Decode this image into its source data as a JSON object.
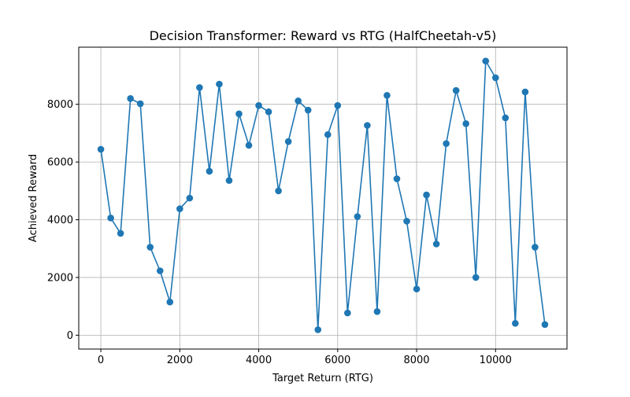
{
  "chart_data": {
    "type": "line",
    "title": "Decision Transformer: Reward vs RTG (HalfCheetah-v5)",
    "xlabel": "Target Return (RTG)",
    "ylabel": "Achieved Reward",
    "xlim": [
      -560,
      11810
    ],
    "ylim": [
      -480,
      9980
    ],
    "xticks": [
      0,
      2000,
      4000,
      6000,
      8000,
      10000
    ],
    "yticks": [
      0,
      2000,
      4000,
      6000,
      8000
    ],
    "grid": true,
    "colors": {
      "series": "#1f77b4",
      "grid": "#b0b0b0"
    },
    "series": [
      {
        "x": [
          0,
          250,
          500,
          750,
          1000,
          1250,
          1500,
          1750,
          2000,
          2250,
          2500,
          2750,
          3000,
          3250,
          3500,
          3750,
          4000,
          4250,
          4500,
          4750,
          5000,
          5250,
          5500,
          5750,
          6000,
          6250,
          6500,
          6750,
          7000,
          7250,
          7500,
          7750,
          8000,
          8250,
          8500,
          8750,
          9000,
          9250,
          9500,
          9750,
          10000,
          10250,
          10500,
          10750,
          11000,
          11250
        ],
        "y": [
          6440,
          4060,
          3530,
          8200,
          8020,
          3050,
          2230,
          1150,
          4380,
          4750,
          8580,
          5680,
          8700,
          5360,
          7670,
          6580,
          7960,
          7740,
          5000,
          6710,
          8120,
          7800,
          190,
          6950,
          7960,
          770,
          4110,
          7270,
          820,
          8310,
          5420,
          3950,
          1600,
          4860,
          3160,
          6640,
          8480,
          7330,
          2000,
          9500,
          8920,
          7530,
          410,
          8430,
          3050,
          370
        ]
      }
    ]
  }
}
